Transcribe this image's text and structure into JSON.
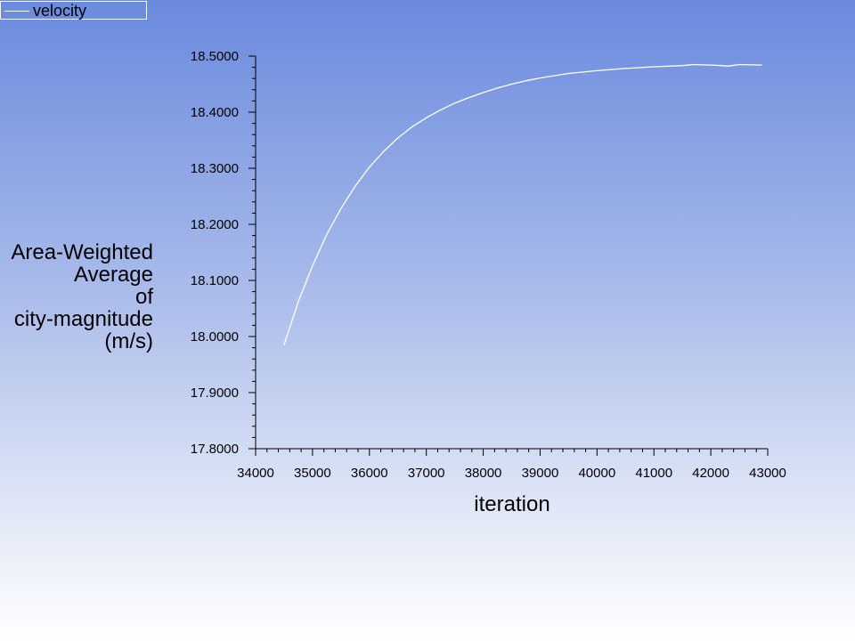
{
  "chart_data": {
    "type": "line",
    "legend": {
      "placement": "top-left",
      "entries": [
        "velocity"
      ]
    },
    "xlabel": "iteration",
    "ylabel": "Area-Weighted\nAverage\nof\ncity-magnitude\n(m/s)",
    "xlim": [
      34000,
      43000
    ],
    "ylim": [
      17.8,
      18.5
    ],
    "x_ticks": [
      "34000",
      "35000",
      "36000",
      "37000",
      "38000",
      "39000",
      "40000",
      "41000",
      "42000",
      "43000"
    ],
    "y_ticks": [
      "17.8000",
      "17.9000",
      "18.0000",
      "18.1000",
      "18.2000",
      "18.3000",
      "18.4000",
      "18.5000"
    ],
    "grid": false,
    "series_color": "#ffffff",
    "series": [
      {
        "name": "velocity",
        "x": [
          34500,
          34750,
          35000,
          35250,
          35500,
          35750,
          36000,
          36250,
          36500,
          36750,
          37000,
          37250,
          37500,
          37750,
          38000,
          38250,
          38500,
          38750,
          39000,
          39500,
          40000,
          40500,
          41000,
          41500,
          41700,
          42000,
          42200,
          42300,
          42500,
          42900
        ],
        "y": [
          17.985,
          18.062,
          18.126,
          18.182,
          18.228,
          18.268,
          18.302,
          18.33,
          18.354,
          18.374,
          18.39,
          18.404,
          18.416,
          18.426,
          18.435,
          18.443,
          18.45,
          18.456,
          18.461,
          18.469,
          18.474,
          18.478,
          18.481,
          18.483,
          18.485,
          18.484,
          18.483,
          18.482,
          18.485,
          18.484
        ]
      }
    ]
  }
}
